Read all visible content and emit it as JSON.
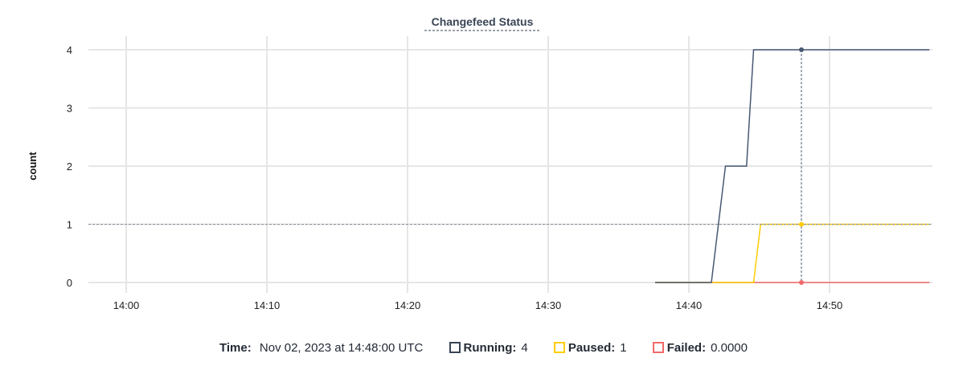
{
  "chart_data": {
    "type": "line",
    "title": "Changefeed Status",
    "ylabel": "count",
    "xlabel": "",
    "x_ticks": [
      "14:00",
      "14:10",
      "14:20",
      "14:30",
      "14:40",
      "14:50"
    ],
    "y_ticks": [
      0,
      1,
      2,
      3,
      4
    ],
    "xlim": [
      "13:57:19",
      "14:57:12"
    ],
    "ylim": [
      0,
      4
    ],
    "grid": true,
    "series": [
      {
        "name": "Running",
        "color": "#475872",
        "points": [
          [
            "14:37:36",
            0
          ],
          [
            "14:41:36",
            0
          ],
          [
            "14:42:36",
            2
          ],
          [
            "14:44:06",
            2
          ],
          [
            "14:44:36",
            4
          ],
          [
            "14:57:06",
            4
          ]
        ]
      },
      {
        "name": "Paused",
        "color": "#ffcd02",
        "points": [
          [
            "14:37:36",
            0
          ],
          [
            "14:44:36",
            0
          ],
          [
            "14:45:06",
            1
          ],
          [
            "14:57:06",
            1
          ]
        ]
      },
      {
        "name": "Failed",
        "color": "#f16969",
        "points": [
          [
            "14:37:36",
            0
          ],
          [
            "14:57:06",
            0
          ]
        ]
      }
    ],
    "hover": {
      "time": "14:48:00"
    }
  },
  "legend": {
    "time_label": "Time:",
    "time_value": "Nov 02, 2023 at 14:48:00 UTC",
    "items": [
      {
        "label": "Running:",
        "value": "4",
        "color": "#394455"
      },
      {
        "label": "Paused:",
        "value": "1",
        "color": "#ffcd02"
      },
      {
        "label": "Failed:",
        "value": "0.0000",
        "color": "#f16969"
      }
    ]
  }
}
